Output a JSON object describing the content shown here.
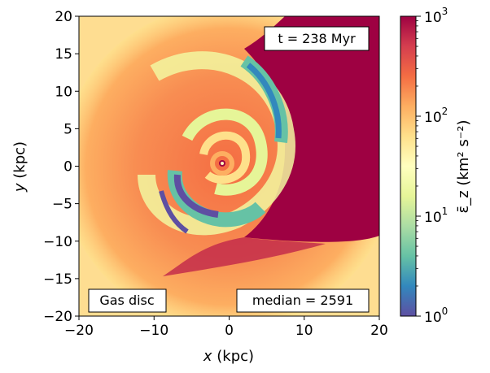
{
  "chart_data": {
    "type": "heatmap",
    "title": "",
    "xlabel": "x (kpc)",
    "ylabel": "y (kpc)",
    "xlim": [
      -20,
      20
    ],
    "ylim": [
      -20,
      20
    ],
    "xticks": [
      -20,
      -10,
      0,
      10,
      20
    ],
    "yticks": [
      -20,
      -15,
      -10,
      -5,
      0,
      5,
      10,
      15,
      20
    ],
    "colorbar": {
      "label": "ε̄_z (km² s⁻²)",
      "scale": "log",
      "range": [
        1,
        1000
      ],
      "ticks": [
        1,
        10,
        100,
        1000
      ],
      "tick_labels": [
        "10^0",
        "10^1",
        "10^2",
        "10^3"
      ],
      "colormap": "Spectral_r",
      "colors": [
        "#5e4fa2",
        "#3288bd",
        "#66c2a5",
        "#abdda4",
        "#e6f598",
        "#ffffbf",
        "#fee08b",
        "#fdae61",
        "#f46d43",
        "#d53e4f",
        "#9e0142"
      ]
    },
    "annotations": {
      "time": "t = 238 Myr",
      "component": "Gas disc",
      "median": "median = 2591"
    }
  }
}
